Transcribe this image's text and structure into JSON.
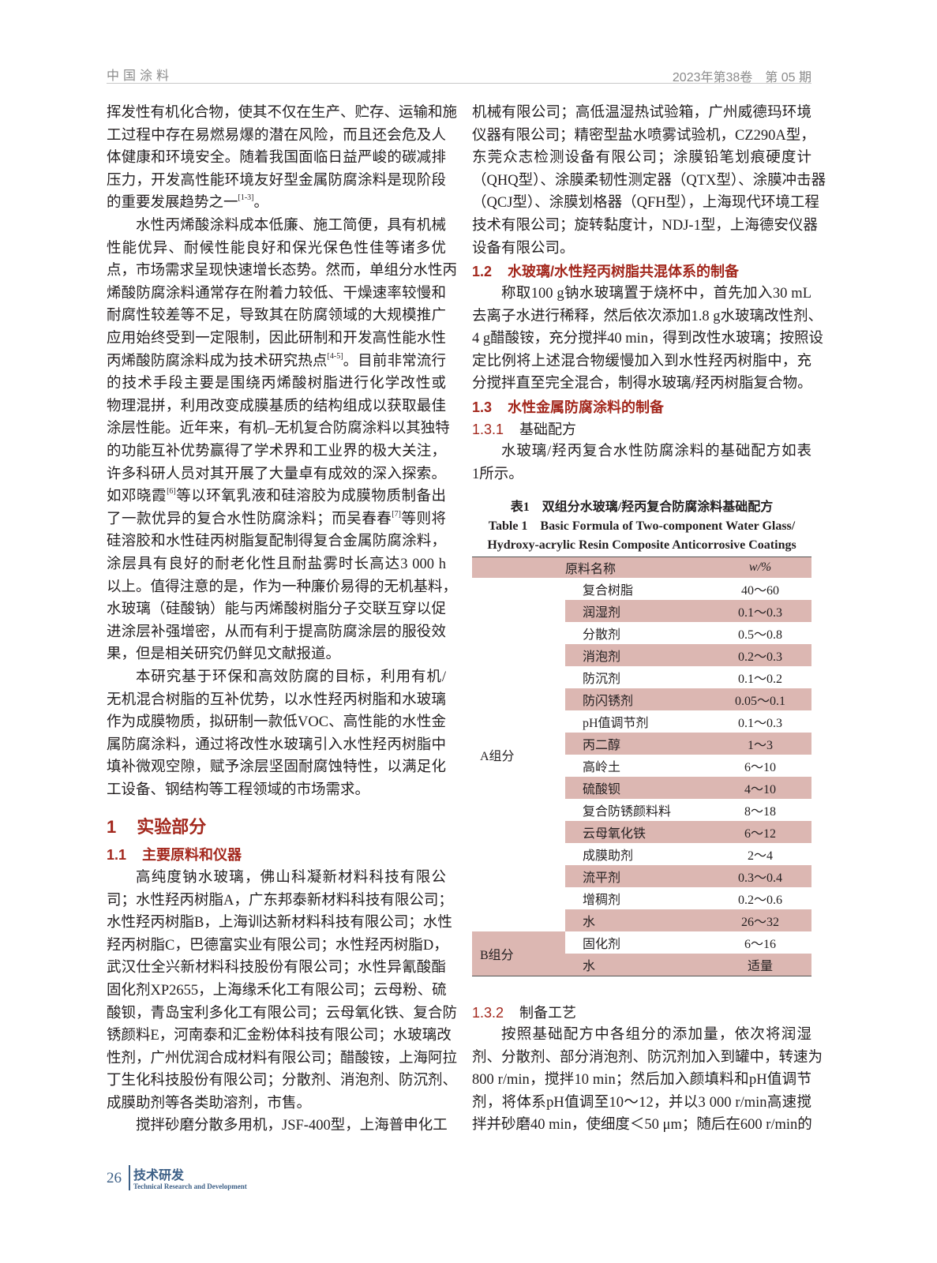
{
  "header": {
    "journal": "中国涂料",
    "issue": "2023年第38卷　第 05 期"
  },
  "left": {
    "p1": [
      [
        "挥发性有机化合物，使其不仅在生产、贮存、运输和施"
      ],
      [
        "工过程中存在易燃易爆的潜在风险，而且还会危及人"
      ],
      [
        "体健康和环境安全。随着我国面临日益严峻的碳减排"
      ],
      [
        "压力，开发高性能环境友好型金属防腐涂料是现阶段"
      ],
      [
        "的重要发展趋势之一",
        {
          "sup": "[1-3]"
        },
        "。"
      ]
    ],
    "p2": [
      [
        "水性丙烯酸涂料成本低廉、施工简便，具有机械"
      ],
      [
        "性能优异、耐候性能良好和保光保色性佳等诸多优"
      ],
      [
        "点，市场需求呈现快速增长态势。然而，单组分水性丙"
      ],
      [
        "烯酸防腐涂料通常存在附着力较低、干燥速率较慢和"
      ],
      [
        "耐腐性较差等不足，导致其在防腐领域的大规模推广"
      ],
      [
        "应用始终受到一定限制，因此研制和开发高性能水性"
      ],
      [
        "丙烯酸防腐涂料成为技术研究热点",
        {
          "sup": "[4-5]"
        },
        "。目前非常流行"
      ],
      [
        "的技术手段主要是围绕丙烯酸树脂进行化学改性或"
      ],
      [
        "物理混拼，利用改变成膜基质的结构组成以获取最佳"
      ],
      [
        "涂层性能。近年来，有机–无机复合防腐涂料以其独特"
      ],
      [
        "的功能互补优势赢得了学术界和工业界的极大关注，"
      ],
      [
        "许多科研人员对其开展了大量卓有成效的深入探索。"
      ],
      [
        "如邓晓霞",
        {
          "sup": "[6]"
        },
        "等以环氧乳液和硅溶胶为成膜物质制备出"
      ],
      [
        "了一款优异的复合水性防腐涂料；而吴春春",
        {
          "sup": "[7]"
        },
        "等则将"
      ],
      [
        "硅溶胶和水性硅丙树脂复配制得复合金属防腐涂料，"
      ],
      [
        "涂层具有良好的耐老化性且耐盐雾时长高达3 000 h"
      ],
      [
        "以上。值得注意的是，作为一种廉价易得的无机基料，"
      ],
      [
        "水玻璃（硅酸钠）能与丙烯酸树脂分子交联互穿以促"
      ],
      [
        "进涂层补强增密，从而有利于提高防腐涂层的服役效"
      ],
      [
        "果，但是相关研究仍鲜见文献报道。"
      ]
    ],
    "p3": [
      [
        "本研究基于环保和高效防腐的目标，利用有机/"
      ],
      [
        "无机混合树脂的互补优势，以水性羟丙树脂和水玻璃"
      ],
      [
        "作为成膜物质，拟研制一款低VOC、高性能的水性金"
      ],
      [
        "属防腐涂料，通过将改性水玻璃引入水性羟丙树脂中"
      ],
      [
        "填补微观空隙，赋予涂层坚固耐腐蚀特性，以满足化"
      ],
      [
        "工设备、钢结构等工程领域的市场需求。"
      ]
    ],
    "h1": {
      "num": "1",
      "title": "实验部分"
    },
    "h11": {
      "num": "1.1",
      "title": "主要原料和仪器"
    },
    "p4": [
      [
        "高纯度钠水玻璃，佛山科凝新材料科技有限公"
      ],
      [
        "司；水性羟丙树脂A，广东邦泰新材料科技有限公司；"
      ],
      [
        "水性羟丙树脂B，上海训达新材料科技有限公司；水性"
      ],
      [
        "羟丙树脂C，巴德富实业有限公司；水性羟丙树脂D，"
      ],
      [
        "武汉仕全兴新材料科技股份有限公司；水性异氰酸酯"
      ],
      [
        "固化剂XP2655，上海缘禾化工有限公司；云母粉、硫"
      ],
      [
        "酸钡，青岛宝利多化工有限公司；云母氧化铁、复合防"
      ],
      [
        "锈颜料E，河南泰和汇金粉体科技有限公司；水玻璃改"
      ],
      [
        "性剂，广州优润合成材料有限公司；醋酸铵，上海阿拉"
      ],
      [
        "丁生化科技股份有限公司；分散剂、消泡剂、防沉剂、"
      ],
      [
        "成膜助剂等各类助溶剂，市售。"
      ]
    ],
    "p5": [
      [
        "搅拌砂磨分散多用机，JSF-400型，上海普申化工"
      ]
    ]
  },
  "right": {
    "p1": [
      [
        "机械有限公司；高低温湿热试验箱，广州威德玛环境"
      ],
      [
        "仪器有限公司；精密型盐水喷雾试验机，CZ290A型，"
      ],
      [
        "东莞众志检测设备有限公司；涂膜铅笔划痕硬度计"
      ],
      [
        "（QHQ型）、涂膜柔韧性测定器（QTX型）、涂膜冲击器"
      ],
      [
        "（QCJ型）、涂膜划格器（QFH型），上海现代环境工程"
      ],
      [
        "技术有限公司；旋转黏度计，NDJ-1型，上海德安仪器"
      ],
      [
        "设备有限公司。"
      ]
    ],
    "h12": {
      "num": "1.2",
      "title": "水玻璃/水性羟丙树脂共混体系的制备"
    },
    "p2": [
      [
        "称取100 g钠水玻璃置于烧杯中，首先加入30 mL"
      ],
      [
        "去离子水进行稀释，然后依次添加1.8 g水玻璃改性剂、"
      ],
      [
        "4 g醋酸铵，充分搅拌40 min，得到改性水玻璃；按照设"
      ],
      [
        "定比例将上述混合物缓慢加入到水性羟丙树脂中，充"
      ],
      [
        "分搅拌直至完全混合，制得水玻璃/羟丙树脂复合物。"
      ]
    ],
    "h13": {
      "num": "1.3",
      "title": "水性金属防腐涂料的制备"
    },
    "h131": {
      "num": "1.3.1",
      "title": "基础配方"
    },
    "p3": [
      [
        "水玻璃/羟丙复合水性防腐涂料的基础配方如表"
      ],
      [
        "1所示。"
      ]
    ],
    "h132": {
      "num": "1.3.2",
      "title": "制备工艺"
    },
    "p4": [
      [
        "按照基础配方中各组分的添加量，依次将润湿"
      ],
      [
        "剂、分散剂、部分消泡剂、防沉剂加入到罐中，转速为"
      ],
      [
        "800 r/min，搅拌10 min；然后加入颜填料和pH值调节"
      ],
      [
        "剂，将体系pH值调至10～12，并以3 000 r/min高速搅"
      ],
      [
        "拌并砂磨40 min，使细度＜50 μm；随后在600 r/min的"
      ]
    ]
  },
  "table": {
    "caption_cn": "表1　双组分水玻璃/羟丙复合防腐涂料基础配方",
    "caption_en_1": "Table 1　Basic Formula of Two-component Water Glass/",
    "caption_en_2": "Hydroxy-acrylic Resin Composite Anticorrosive Coatings",
    "col_name": "原料名称",
    "col_value": "w/%",
    "shade_color": "#dcb7b2",
    "groups": [
      {
        "label": "A组分",
        "rows": [
          {
            "name": "复合树脂",
            "value": "40～60"
          },
          {
            "name": "润湿剂",
            "value": "0.1～0.3"
          },
          {
            "name": "分散剂",
            "value": "0.5～0.8"
          },
          {
            "name": "消泡剂",
            "value": "0.2～0.3"
          },
          {
            "name": "防沉剂",
            "value": "0.1～0.2"
          },
          {
            "name": "防闪锈剂",
            "value": "0.05～0.1"
          },
          {
            "name": "pH值调节剂",
            "value": "0.1～0.3"
          },
          {
            "name": "丙二醇",
            "value": "1～3"
          },
          {
            "name": "高岭土",
            "value": "6～10"
          },
          {
            "name": "硫酸钡",
            "value": "4～10"
          },
          {
            "name": "复合防锈颜料料",
            "value": "8～18"
          },
          {
            "name": "云母氧化铁",
            "value": "6～12"
          },
          {
            "name": "成膜助剂",
            "value": "2～4"
          },
          {
            "name": "流平剂",
            "value": "0.3～0.4"
          },
          {
            "name": "增稠剂",
            "value": "0.2～0.6"
          },
          {
            "name": "水",
            "value": "26～32"
          }
        ]
      },
      {
        "label": "B组分",
        "rows": [
          {
            "name": "固化剂",
            "value": "6～16"
          },
          {
            "name": "水",
            "value": "适量"
          }
        ]
      }
    ]
  },
  "footer": {
    "page": "26",
    "section": "技术研发",
    "section_en": "Technical Research and Development"
  }
}
